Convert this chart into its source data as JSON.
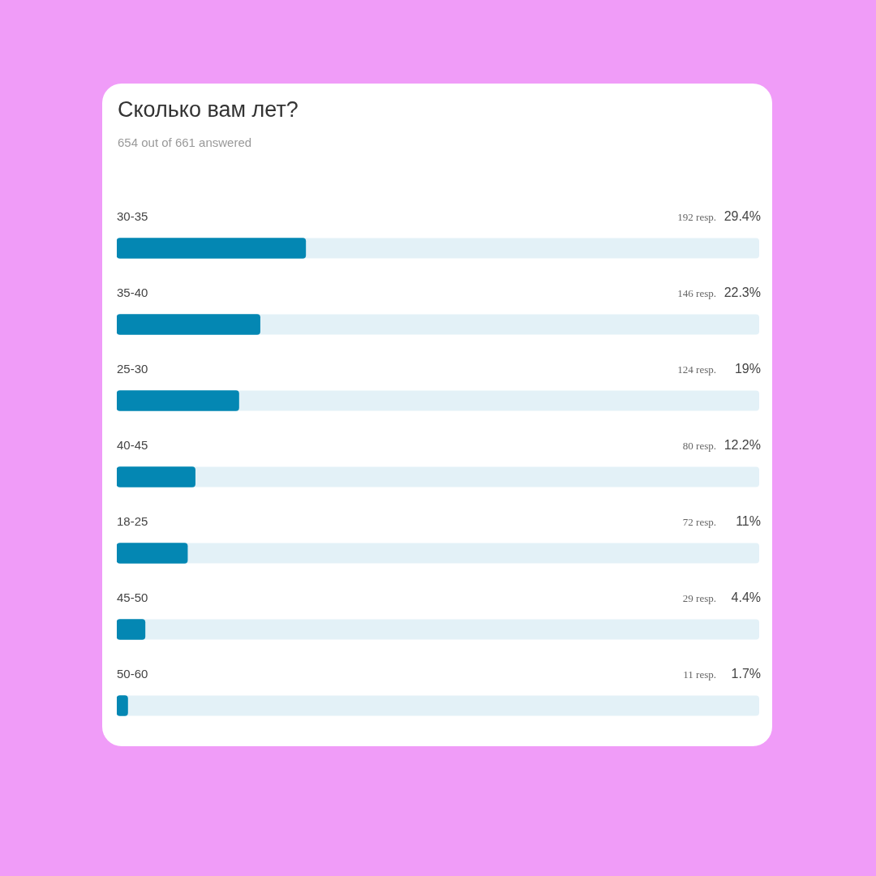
{
  "chart_data": {
    "type": "bar",
    "orientation": "horizontal",
    "title": "Сколько вам лет?",
    "subtitle": "654 out of 661 answered",
    "categories": [
      "30-35",
      "35-40",
      "25-30",
      "40-45",
      "18-25",
      "45-50",
      "50-60"
    ],
    "values": [
      29.4,
      22.3,
      19,
      12.2,
      11,
      4.4,
      1.7
    ],
    "value_labels": [
      "29.4%",
      "22.3%",
      "19%",
      "12.2%",
      "11%",
      "4.4%",
      "1.7%"
    ],
    "color": "#0487b3",
    "xlim": [
      0,
      100
    ],
    "tick_labels": false,
    "annotations": [
      "192 resp.",
      "146 resp.",
      "124 resp.",
      "80 resp.",
      "72 resp.",
      "29 resp.",
      "11 resp."
    ]
  }
}
